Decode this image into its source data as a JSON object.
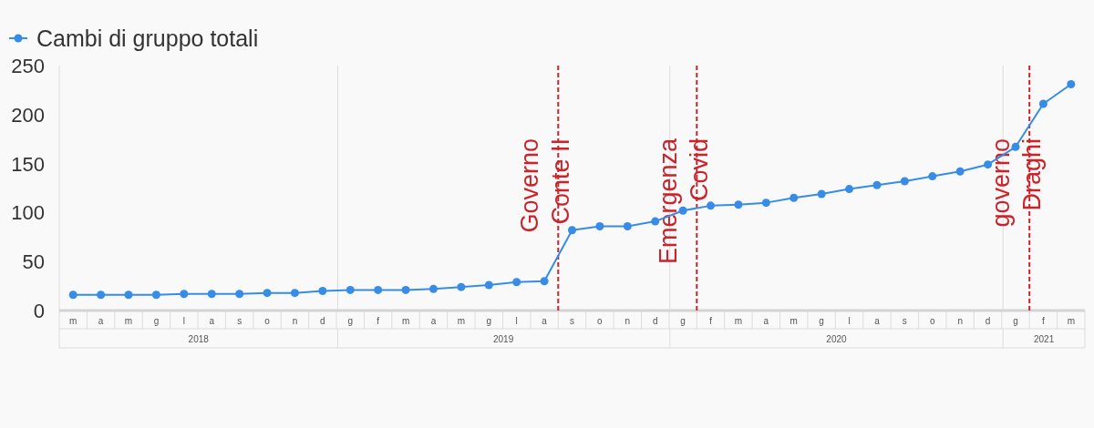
{
  "chart_data": {
    "type": "line",
    "categories": [
      "m",
      "a",
      "m",
      "g",
      "l",
      "a",
      "s",
      "o",
      "n",
      "d",
      "g",
      "f",
      "m",
      "a",
      "m",
      "g",
      "l",
      "a",
      "s",
      "o",
      "n",
      "d",
      "g",
      "f",
      "m",
      "a",
      "m",
      "g",
      "l",
      "a",
      "s",
      "o",
      "n",
      "d",
      "g",
      "f",
      "m"
    ],
    "x2lim": [
      "2018-03-01",
      "2021-04-01"
    ],
    "x2ticks": [
      {
        "value": "2018-08-01",
        "label": "2018"
      },
      {
        "value": "2019-07-02",
        "label": "2019"
      },
      {
        "value": "2020-07-02",
        "label": "2020"
      },
      {
        "value": "2021-02-15",
        "label": "2021"
      }
    ],
    "ylim": [
      0,
      250
    ],
    "yticks": [
      0,
      50,
      100,
      150,
      200,
      250
    ],
    "grid": "x",
    "legend": "top left",
    "marker": "circle",
    "line_style": "solid",
    "series": [
      {
        "name": "Cambi di gruppo totali",
        "color": "#368ce7",
        "values": [
          16,
          16,
          16,
          16,
          17,
          17,
          17,
          18,
          18,
          20,
          21,
          21,
          21,
          22,
          24,
          26,
          29,
          30,
          82,
          86,
          86,
          91,
          102,
          107,
          108,
          110,
          115,
          119,
          124,
          128,
          132,
          137,
          142,
          149,
          167,
          211,
          231
        ]
      }
    ],
    "annotations": [
      "Governo Conte II",
      "Emergenza Covid",
      "governo Draghi"
    ]
  }
}
